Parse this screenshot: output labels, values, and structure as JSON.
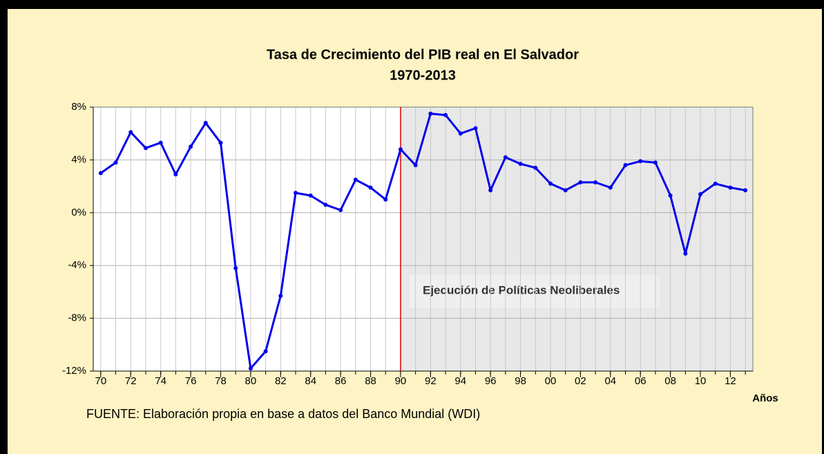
{
  "chart_data": {
    "type": "line",
    "title": "Tasa de Crecimiento del PIB real en El Salvador",
    "subtitle": "1970-2013",
    "x_label": "Años",
    "source": "FUENTE: Elaboración propia en base a datos del Banco Mundial (WDI)",
    "annotation": "Ejecución de Políticas Neoliberales",
    "highlight_start": 1990,
    "color": "#0000ee",
    "x": [
      1970,
      1971,
      1972,
      1973,
      1974,
      1975,
      1976,
      1977,
      1978,
      1979,
      1980,
      1981,
      1982,
      1983,
      1984,
      1985,
      1986,
      1987,
      1988,
      1989,
      1990,
      1991,
      1992,
      1993,
      1994,
      1995,
      1996,
      1997,
      1998,
      1999,
      2000,
      2001,
      2002,
      2003,
      2004,
      2005,
      2006,
      2007,
      2008,
      2009,
      2010,
      2011,
      2012,
      2013
    ],
    "values": [
      3.0,
      3.8,
      6.1,
      4.9,
      5.3,
      2.9,
      5.0,
      6.8,
      5.3,
      -4.2,
      -11.8,
      -10.5,
      -6.3,
      1.5,
      1.3,
      0.6,
      0.2,
      2.5,
      1.9,
      1.0,
      4.8,
      3.6,
      7.5,
      7.4,
      6.0,
      6.4,
      1.7,
      4.2,
      3.7,
      3.4,
      2.2,
      1.7,
      2.3,
      2.3,
      1.9,
      3.6,
      3.9,
      3.8,
      1.3,
      -3.1,
      1.4,
      2.2,
      1.9,
      1.7
    ],
    "xlim": [
      1969.5,
      2013.5
    ],
    "xticks": [
      {
        "value": 1970,
        "label": "70"
      },
      {
        "value": 1972,
        "label": "72"
      },
      {
        "value": 1974,
        "label": "74"
      },
      {
        "value": 1976,
        "label": "76"
      },
      {
        "value": 1978,
        "label": "78"
      },
      {
        "value": 1980,
        "label": "80"
      },
      {
        "value": 1982,
        "label": "82"
      },
      {
        "value": 1984,
        "label": "84"
      },
      {
        "value": 1986,
        "label": "86"
      },
      {
        "value": 1988,
        "label": "88"
      },
      {
        "value": 1990,
        "label": "90"
      },
      {
        "value": 1992,
        "label": "92"
      },
      {
        "value": 1994,
        "label": "94"
      },
      {
        "value": 1996,
        "label": "96"
      },
      {
        "value": 1998,
        "label": "98"
      },
      {
        "value": 2000,
        "label": "00"
      },
      {
        "value": 2002,
        "label": "02"
      },
      {
        "value": 2004,
        "label": "04"
      },
      {
        "value": 2006,
        "label": "06"
      },
      {
        "value": 2008,
        "label": "08"
      },
      {
        "value": 2010,
        "label": "10"
      },
      {
        "value": 2012,
        "label": "12"
      }
    ],
    "ylim": [
      -12,
      8
    ],
    "yticks": [
      {
        "value": -12,
        "label": "-12%"
      },
      {
        "value": -8,
        "label": "-8%"
      },
      {
        "value": -4,
        "label": "-4%"
      },
      {
        "value": 0,
        "label": "0%"
      },
      {
        "value": 4,
        "label": "4%"
      },
      {
        "value": 8,
        "label": "8%"
      }
    ],
    "grid": true
  }
}
